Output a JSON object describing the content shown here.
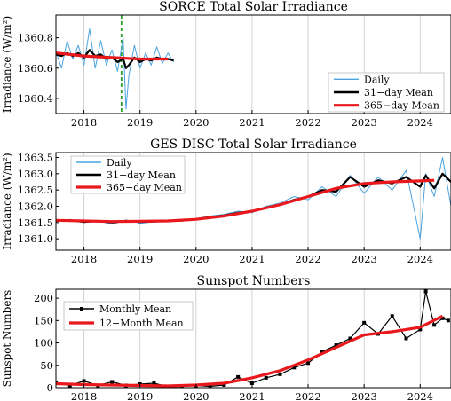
{
  "chart_data": [
    {
      "type": "line",
      "title": "SORCE Total Solar Irradiance",
      "ylabel": "Irradiance (W/m²)",
      "xlim": [
        2017.5,
        2024.55
      ],
      "ylim": [
        1360.3,
        1360.95
      ],
      "x_ticks": [
        2018,
        2019,
        2020,
        2021,
        2022,
        2023,
        2024
      ],
      "x_tick_labels": [
        "2018",
        "2019",
        "2020",
        "2021",
        "2022",
        "2023",
        "2024"
      ],
      "y_ticks": [
        1360.4,
        1360.6,
        1360.8
      ],
      "y_tick_labels": [
        "1360.4",
        "1360.6",
        "1360.8"
      ],
      "grid": true,
      "legend_position": "lower-right",
      "reference_lines": [
        {
          "axis": "x",
          "value": 2018.67,
          "style": "dashed",
          "color": "#2ca02c"
        },
        {
          "axis": "y",
          "value": 1360.66,
          "style": "solid",
          "color": "#888888"
        }
      ],
      "series": [
        {
          "name": "Daily",
          "color": "#4aa3e0",
          "x": [
            2017.5,
            2017.6,
            2017.7,
            2017.8,
            2017.9,
            2018.0,
            2018.1,
            2018.2,
            2018.3,
            2018.4,
            2018.5,
            2018.6,
            2018.7,
            2018.75,
            2018.8,
            2018.9,
            2019.0,
            2019.1,
            2019.2,
            2019.3,
            2019.4,
            2019.5,
            2019.6
          ],
          "y": [
            1360.71,
            1360.6,
            1360.78,
            1360.66,
            1360.75,
            1360.62,
            1360.86,
            1360.6,
            1360.78,
            1360.62,
            1360.72,
            1360.58,
            1360.8,
            1360.33,
            1360.55,
            1360.75,
            1360.6,
            1360.7,
            1360.62,
            1360.74,
            1360.63,
            1360.7,
            1360.64
          ]
        },
        {
          "name": "31−day Mean",
          "color": "#000000",
          "x": [
            2017.5,
            2017.6,
            2017.7,
            2017.8,
            2017.9,
            2018.0,
            2018.1,
            2018.2,
            2018.3,
            2018.4,
            2018.5,
            2018.6,
            2018.7,
            2018.75,
            2018.8,
            2018.9,
            2019.0,
            2019.1,
            2019.2,
            2019.3,
            2019.4,
            2019.5,
            2019.6
          ],
          "y": [
            1360.69,
            1360.68,
            1360.7,
            1360.68,
            1360.7,
            1360.67,
            1360.72,
            1360.68,
            1360.69,
            1360.66,
            1360.67,
            1360.64,
            1360.66,
            1360.6,
            1360.62,
            1360.67,
            1360.64,
            1360.66,
            1360.65,
            1360.67,
            1360.66,
            1360.66,
            1360.65
          ]
        },
        {
          "name": "365−day Mean",
          "color": "#e8181c",
          "x": [
            2017.5,
            2017.75,
            2018.0,
            2018.25,
            2018.5,
            2018.75,
            2019.0,
            2019.25,
            2019.5
          ],
          "y": [
            1360.7,
            1360.69,
            1360.68,
            1360.675,
            1360.67,
            1360.665,
            1360.66,
            1360.66,
            1360.66
          ]
        }
      ]
    },
    {
      "type": "line",
      "title": "GES DISC Total Solar Irradiance",
      "ylabel": "Irradiance (W/m²)",
      "xlim": [
        2017.5,
        2024.55
      ],
      "ylim": [
        1360.65,
        1363.65
      ],
      "x_ticks": [
        2018,
        2019,
        2020,
        2021,
        2022,
        2023,
        2024
      ],
      "x_tick_labels": [
        "2018",
        "2019",
        "2020",
        "2021",
        "2022",
        "2023",
        "2024"
      ],
      "y_ticks": [
        1361.0,
        1361.5,
        1362.0,
        1362.5,
        1363.0,
        1363.5
      ],
      "y_tick_labels": [
        "1361.0",
        "1361.5",
        "1362.0",
        "1362.5",
        "1363.0",
        "1363.5"
      ],
      "grid": true,
      "legend_position": "upper-left",
      "series": [
        {
          "name": "Daily",
          "color": "#4aa3e0",
          "x": [
            2017.5,
            2017.75,
            2018.0,
            2018.25,
            2018.5,
            2018.75,
            2019.0,
            2019.25,
            2019.5,
            2019.75,
            2020.0,
            2020.25,
            2020.5,
            2020.75,
            2021.0,
            2021.25,
            2021.5,
            2021.75,
            2022.0,
            2022.25,
            2022.5,
            2022.75,
            2023.0,
            2023.25,
            2023.5,
            2023.75,
            2024.0,
            2024.1,
            2024.25,
            2024.4,
            2024.55
          ],
          "y": [
            1361.55,
            1361.6,
            1361.5,
            1361.55,
            1361.45,
            1361.58,
            1361.48,
            1361.52,
            1361.58,
            1361.55,
            1361.62,
            1361.7,
            1361.75,
            1361.85,
            1361.8,
            1362.0,
            1362.1,
            1362.3,
            1362.2,
            1362.6,
            1362.3,
            1362.95,
            1362.4,
            1362.9,
            1362.5,
            1363.1,
            1361.0,
            1363.0,
            1362.3,
            1363.5,
            1362.0
          ]
        },
        {
          "name": "31−day Mean",
          "color": "#000000",
          "x": [
            2017.5,
            2017.75,
            2018.0,
            2018.25,
            2018.5,
            2018.75,
            2019.0,
            2019.25,
            2019.5,
            2019.75,
            2020.0,
            2020.25,
            2020.5,
            2020.75,
            2021.0,
            2021.25,
            2021.5,
            2021.75,
            2022.0,
            2022.25,
            2022.5,
            2022.75,
            2023.0,
            2023.25,
            2023.5,
            2023.75,
            2024.0,
            2024.1,
            2024.25,
            2024.4,
            2024.55
          ],
          "y": [
            1361.55,
            1361.57,
            1361.52,
            1361.55,
            1361.5,
            1361.55,
            1361.52,
            1361.53,
            1361.56,
            1361.56,
            1361.6,
            1361.67,
            1361.72,
            1361.8,
            1361.85,
            1361.95,
            1362.05,
            1362.2,
            1362.3,
            1362.5,
            1362.45,
            1362.9,
            1362.6,
            1362.8,
            1362.7,
            1362.9,
            1362.6,
            1362.95,
            1362.55,
            1363.0,
            1362.75
          ]
        },
        {
          "name": "365−day Mean",
          "color": "#e8181c",
          "x": [
            2017.5,
            2018.0,
            2018.5,
            2019.0,
            2019.5,
            2020.0,
            2020.5,
            2021.0,
            2021.5,
            2022.0,
            2022.5,
            2023.0,
            2023.5,
            2024.0,
            2024.25
          ],
          "y": [
            1361.57,
            1361.55,
            1361.53,
            1361.54,
            1361.55,
            1361.6,
            1361.7,
            1361.85,
            1362.05,
            1362.3,
            1362.55,
            1362.7,
            1362.75,
            1362.78,
            1362.8
          ]
        }
      ]
    },
    {
      "type": "line",
      "title": "Sunspot Numbers",
      "ylabel": "Sunspot Numbers",
      "xlim": [
        2017.5,
        2024.55
      ],
      "ylim": [
        0,
        220
      ],
      "x_ticks": [
        2018,
        2019,
        2020,
        2021,
        2022,
        2023,
        2024
      ],
      "x_tick_labels": [
        "2018",
        "2019",
        "2020",
        "2021",
        "2022",
        "2023",
        "2024"
      ],
      "y_ticks": [
        0,
        50,
        100,
        150,
        200
      ],
      "y_tick_labels": [
        "0",
        "50",
        "100",
        "150",
        "200"
      ],
      "grid": true,
      "legend_position": "upper-left",
      "series": [
        {
          "name": "Monthly Mean",
          "color": "#000000",
          "marker": "square",
          "x": [
            2017.5,
            2017.75,
            2018.0,
            2018.25,
            2018.5,
            2018.75,
            2019.0,
            2019.25,
            2019.5,
            2019.75,
            2020.0,
            2020.25,
            2020.5,
            2020.75,
            2021.0,
            2021.25,
            2021.5,
            2021.75,
            2022.0,
            2022.25,
            2022.5,
            2022.75,
            2023.0,
            2023.25,
            2023.5,
            2023.75,
            2024.0,
            2024.1,
            2024.25,
            2024.4,
            2024.5
          ],
          "y": [
            12,
            5,
            15,
            5,
            13,
            5,
            8,
            10,
            2,
            3,
            5,
            3,
            6,
            24,
            10,
            22,
            30,
            45,
            55,
            80,
            95,
            110,
            145,
            120,
            160,
            110,
            130,
            215,
            140,
            155,
            150
          ]
        },
        {
          "name": "12−Month Mean",
          "color": "#e8181c",
          "x": [
            2017.5,
            2018.0,
            2018.5,
            2019.0,
            2019.5,
            2020.0,
            2020.5,
            2021.0,
            2021.5,
            2022.0,
            2022.5,
            2023.0,
            2023.5,
            2024.0,
            2024.4
          ],
          "y": [
            9,
            7,
            6,
            5,
            4,
            6,
            10,
            22,
            38,
            62,
            90,
            118,
            125,
            135,
            160
          ]
        }
      ]
    }
  ]
}
